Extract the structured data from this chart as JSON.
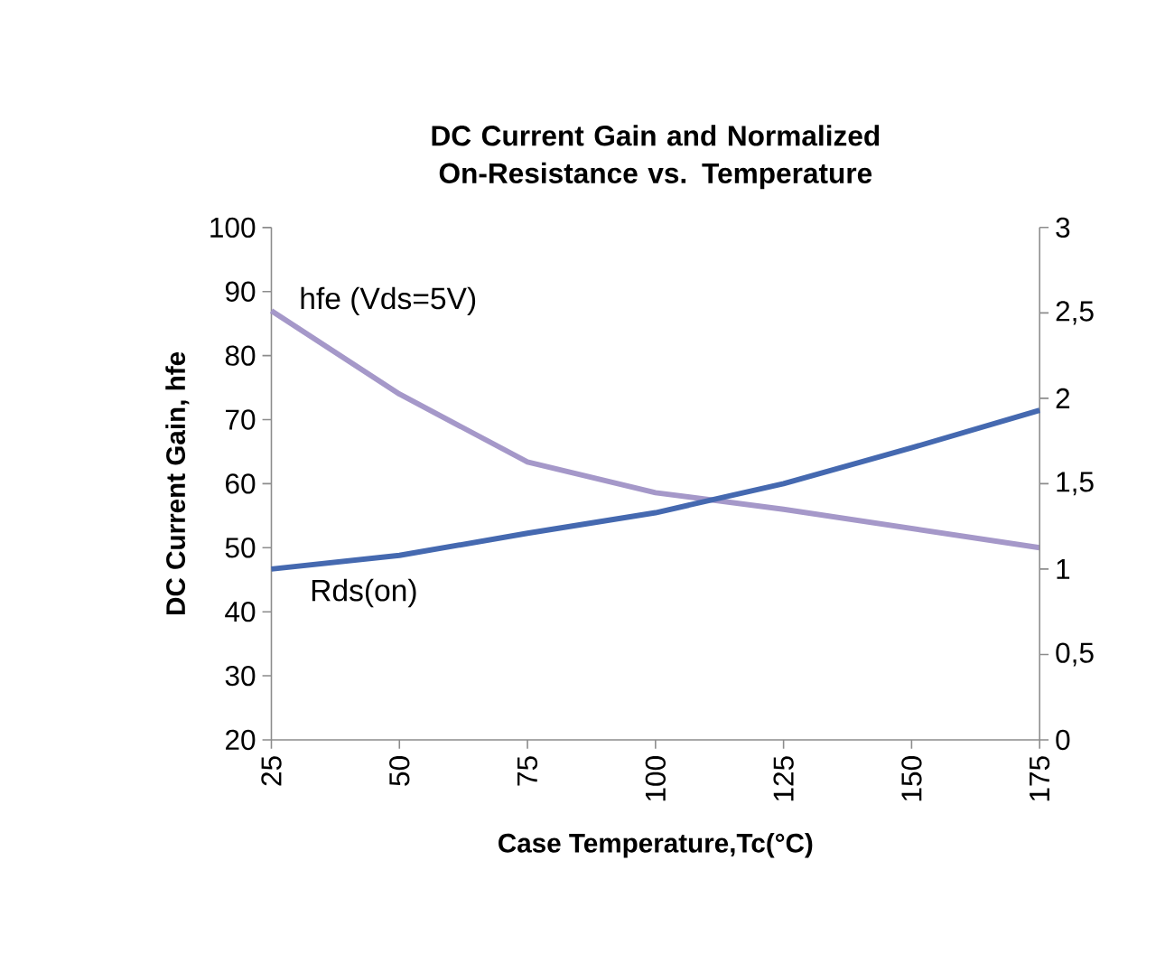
{
  "chart_data": {
    "type": "line",
    "title": "DC Current Gain and Normalized On-Resistance vs. Temperature",
    "xlabel": "Case Temperature,Tc(°C)",
    "ylabel": "DC Current Gain, hfe",
    "x": [
      25,
      50,
      75,
      100,
      125,
      150,
      175
    ],
    "xlim": [
      25,
      175
    ],
    "xticks": [
      25,
      50,
      75,
      100,
      125,
      150,
      175
    ],
    "ylim": [
      20,
      100
    ],
    "yticks": [
      20,
      30,
      40,
      50,
      60,
      70,
      80,
      90,
      100
    ],
    "y2lim": [
      0,
      3
    ],
    "y2ticks": [
      0,
      {
        "value": 0.5,
        "label": "0,5"
      },
      1,
      {
        "value": 1.5,
        "label": "1,5"
      },
      2,
      {
        "value": 2.5,
        "label": "2,5"
      },
      3
    ],
    "legend": false,
    "grid": false,
    "marker": "none",
    "line_style": "solid",
    "series": [
      {
        "name": "hfe (Vds=5V)",
        "color": "#a598c9",
        "values": [
          87,
          74,
          63.4,
          58.6,
          56,
          53,
          50
        ]
      },
      {
        "name": "Rds(on)",
        "color": "#4569b0",
        "axis": "y2",
        "values": [
          1.0,
          1.08,
          1.21,
          1.33,
          1.5,
          1.71,
          1.93
        ]
      }
    ]
  }
}
